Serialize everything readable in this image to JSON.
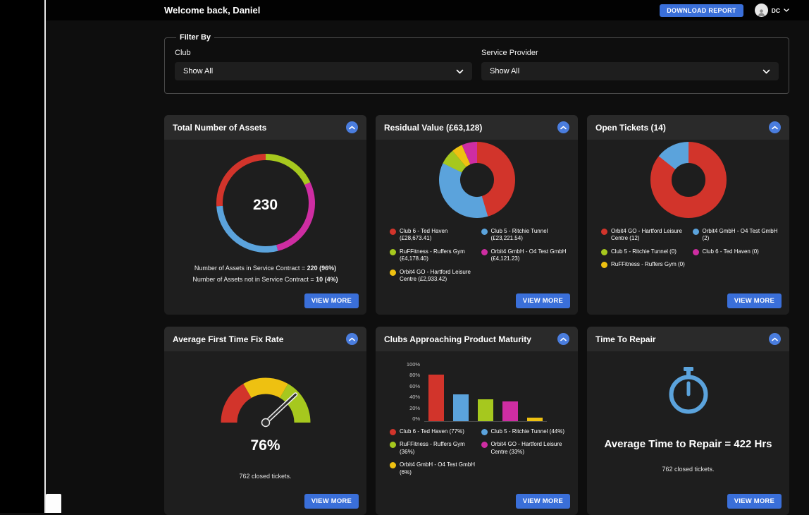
{
  "colors": {
    "red": "#d2342b",
    "green": "#a6c81e",
    "yellow": "#eec111",
    "blue": "#5ba3dc",
    "magenta": "#ce2da2",
    "accent": "#3a6fd9",
    "accent_light": "#4a7dde"
  },
  "header": {
    "welcome": "Welcome back, Daniel",
    "download_report": "DOWNLOAD REPORT",
    "user_initials": "DC"
  },
  "filter": {
    "legend": "Filter By",
    "club_label": "Club",
    "club_value": "Show All",
    "provider_label": "Service Provider",
    "provider_value": "Show All"
  },
  "labels": {
    "view_more": "VIEW MORE"
  },
  "cards": {
    "assets": {
      "title": "Total Number of Assets",
      "center_value": "230",
      "stat1_text": "Number of Assets in Service Contract = ",
      "stat1_value": "220 (96%)",
      "stat2_text": "Number of Assets not in Service Contract = ",
      "stat2_value": "10 (4%)",
      "chart": {
        "type": "donut",
        "segments": [
          {
            "color": "green",
            "value": 18
          },
          {
            "color": "magenta",
            "value": 28
          },
          {
            "color": "blue",
            "value": 28
          },
          {
            "color": "red",
            "value": 26
          }
        ]
      }
    },
    "residual": {
      "title": "Residual Value (£63,128)",
      "chart": {
        "type": "donut",
        "segments": [
          {
            "color": "red",
            "value": 28673.41
          },
          {
            "color": "blue",
            "value": 23221.54
          },
          {
            "color": "green",
            "value": 4178.4
          },
          {
            "color": "yellow",
            "value": 2933.42
          },
          {
            "color": "magenta",
            "value": 4121.23
          }
        ]
      },
      "legend": [
        {
          "color": "red",
          "label": "Club 6 - Ted Haven (£28,673.41)"
        },
        {
          "color": "blue",
          "label": "Club 5 - Ritchie Tunnel (£23,221.54)"
        },
        {
          "color": "green",
          "label": "RuFFitness - Ruffers Gym (£4,178.40)"
        },
        {
          "color": "magenta",
          "label": "Orbit4 GmbH - O4 Test GmbH (£4,121.23)"
        },
        {
          "color": "yellow",
          "label": "Orbit4 GO - Hartford Leisure Centre (£2,933.42)"
        }
      ]
    },
    "tickets": {
      "title": "Open Tickets (14)",
      "chart": {
        "type": "donut",
        "segments": [
          {
            "color": "red",
            "value": 12
          },
          {
            "color": "blue",
            "value": 2
          }
        ]
      },
      "legend": [
        {
          "color": "red",
          "label": "Orbit4 GO - Hartford Leisure Centre (12)"
        },
        {
          "color": "blue",
          "label": "Orbit4 GmbH - O4 Test GmbH (2)"
        },
        {
          "color": "green",
          "label": "Club 5 - Ritchie Tunnel (0)"
        },
        {
          "color": "magenta",
          "label": "Club 6 - Ted Haven (0)"
        },
        {
          "color": "yellow",
          "label": "RuFFitness - Ruffers Gym (0)"
        }
      ]
    },
    "fix_rate": {
      "title": "Average First Time Fix Rate",
      "value_label": "76%",
      "footnote": "762 closed tickets.",
      "chart": {
        "type": "gauge",
        "value": 76,
        "segments": [
          {
            "color": "red"
          },
          {
            "color": "yellow"
          },
          {
            "color": "green"
          }
        ]
      }
    },
    "maturity": {
      "title": "Clubs Approaching Product Maturity",
      "chart": {
        "type": "bar",
        "max": 100,
        "y_ticks": [
          "100%",
          "80%",
          "60%",
          "40%",
          "20%",
          "0%"
        ],
        "bars": [
          {
            "color": "red",
            "value": 77
          },
          {
            "color": "blue",
            "value": 44
          },
          {
            "color": "green",
            "value": 36
          },
          {
            "color": "magenta",
            "value": 33
          },
          {
            "color": "yellow",
            "value": 6
          }
        ]
      },
      "legend": [
        {
          "color": "red",
          "label": "Club 6 - Ted Haven (77%)"
        },
        {
          "color": "blue",
          "label": "Club 5 - Ritchie Tunnel (44%)"
        },
        {
          "color": "green",
          "label": "RuFFitness - Ruffers Gym (36%)"
        },
        {
          "color": "magenta",
          "label": "Orbit4 GO - Hartford Leisure Centre (33%)"
        },
        {
          "color": "yellow",
          "label": "Orbit4 GmbH - O4 Test GmbH (6%)"
        }
      ]
    },
    "repair": {
      "title": "Time To Repair",
      "headline": "Average Time to Repair = 422 Hrs",
      "footnote": "762 closed tickets."
    }
  }
}
